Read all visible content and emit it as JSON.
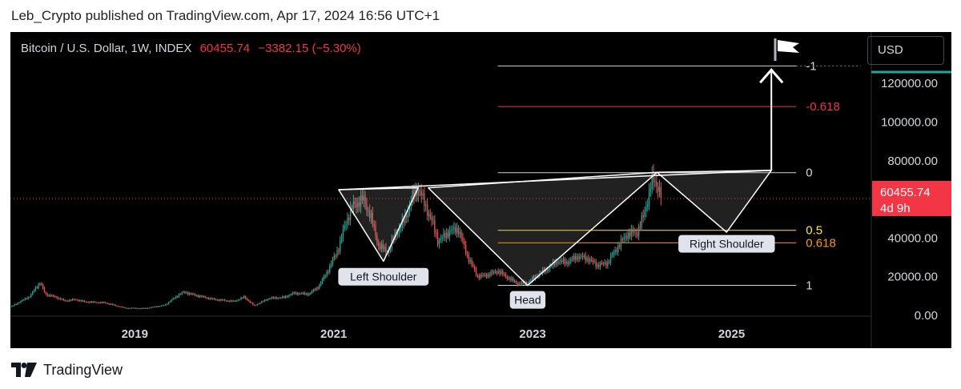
{
  "header": {
    "publisher": "Leb_Crypto published on TradingView.com, Apr 17, 2024 16:56 UTC+1"
  },
  "legend": {
    "symbol": "Bitcoin / U.S. Dollar, 1W, INDEX",
    "price": "60455.74",
    "change": "−3382.15 (−5.30%)"
  },
  "currency_button": "USD",
  "footer": {
    "brand": "TradingView",
    "logo_icon": "tradingview-logo-icon"
  },
  "colors": {
    "up": "#26a69a",
    "down": "#ef5350",
    "background": "#000000",
    "text": "#d1d4dc",
    "price_tag": "#f23645"
  },
  "chart_data": {
    "type": "candlestick",
    "y_axis": {
      "min": 0,
      "max": 130000,
      "ticks": [
        0,
        20000,
        40000,
        60000,
        80000,
        100000,
        120000
      ],
      "tick_labels": [
        "0.00",
        "20000.00",
        "40000.00",
        "",
        "80000.00",
        "100000.00",
        "120000.00"
      ]
    },
    "x_axis": {
      "min": 2017.75,
      "max": 2026.3,
      "ticks": [
        2019,
        2021,
        2023,
        2025
      ],
      "tick_labels": [
        "2019",
        "2021",
        "2023",
        "2025"
      ]
    },
    "price_series": [
      [
        2017.75,
        4300
      ],
      [
        2017.95,
        10000
      ],
      [
        2018.0,
        14000
      ],
      [
        2018.05,
        17000
      ],
      [
        2018.1,
        11000
      ],
      [
        2018.2,
        9500
      ],
      [
        2018.3,
        7500
      ],
      [
        2018.4,
        8200
      ],
      [
        2018.5,
        7000
      ],
      [
        2018.7,
        6500
      ],
      [
        2018.9,
        3800
      ],
      [
        2019.1,
        3600
      ],
      [
        2019.3,
        5200
      ],
      [
        2019.45,
        11000
      ],
      [
        2019.5,
        12000
      ],
      [
        2019.6,
        10500
      ],
      [
        2019.8,
        8200
      ],
      [
        2020.0,
        7200
      ],
      [
        2020.1,
        9500
      ],
      [
        2020.2,
        5000
      ],
      [
        2020.35,
        8800
      ],
      [
        2020.5,
        9300
      ],
      [
        2020.6,
        11500
      ],
      [
        2020.75,
        11000
      ],
      [
        2020.85,
        15000
      ],
      [
        2020.95,
        24000
      ],
      [
        2021.05,
        35000
      ],
      [
        2021.12,
        48000
      ],
      [
        2021.2,
        57000
      ],
      [
        2021.3,
        60000
      ],
      [
        2021.38,
        50000
      ],
      [
        2021.45,
        36000
      ],
      [
        2021.55,
        33000
      ],
      [
        2021.62,
        42000
      ],
      [
        2021.7,
        48000
      ],
      [
        2021.8,
        62000
      ],
      [
        2021.85,
        66000
      ],
      [
        2021.92,
        57000
      ],
      [
        2022.0,
        47000
      ],
      [
        2022.05,
        38000
      ],
      [
        2022.15,
        43000
      ],
      [
        2022.25,
        45000
      ],
      [
        2022.35,
        30000
      ],
      [
        2022.45,
        20000
      ],
      [
        2022.55,
        21000
      ],
      [
        2022.65,
        23000
      ],
      [
        2022.75,
        19500
      ],
      [
        2022.85,
        16500
      ],
      [
        2022.95,
        16800
      ],
      [
        2023.05,
        21000
      ],
      [
        2023.15,
        24000
      ],
      [
        2023.25,
        28000
      ],
      [
        2023.35,
        27500
      ],
      [
        2023.45,
        30500
      ],
      [
        2023.55,
        29500
      ],
      [
        2023.65,
        26000
      ],
      [
        2023.75,
        27000
      ],
      [
        2023.85,
        35000
      ],
      [
        2023.95,
        42000
      ],
      [
        2024.05,
        43000
      ],
      [
        2024.12,
        52000
      ],
      [
        2024.2,
        70000
      ],
      [
        2024.25,
        68000
      ],
      [
        2024.28,
        64000
      ],
      [
        2024.29,
        60455.74
      ]
    ],
    "current_price": {
      "value": 60455.74,
      "label": "60455.74",
      "countdown": "4d 9h"
    },
    "fib_levels": [
      {
        "label": "1",
        "value": 15500,
        "color": "#d1d4dc"
      },
      {
        "label": "0.618",
        "value": 37500,
        "color": "#ff9800"
      },
      {
        "label": "0.5",
        "value": 44000,
        "color": "#ffeb3b"
      },
      {
        "label": "0",
        "value": 73800,
        "color": "#d1d4dc"
      },
      {
        "label": "-0.618",
        "value": 108000,
        "color": "#f23645"
      },
      {
        "label": "-1",
        "value": 129000,
        "color": "#d1d4dc"
      }
    ],
    "pattern": {
      "neckline": [
        [
          2021.05,
          65000
        ],
        [
          2025.4,
          75000
        ]
      ],
      "left_shoulder": [
        [
          2021.05,
          65000
        ],
        [
          2021.5,
          28000
        ],
        [
          2021.85,
          66000
        ]
      ],
      "head": [
        [
          2021.95,
          66000
        ],
        [
          2022.95,
          15500
        ],
        [
          2024.25,
          74000
        ]
      ],
      "right_shoulder": [
        [
          2024.25,
          74000
        ],
        [
          2024.95,
          43000
        ],
        [
          2025.4,
          75000
        ]
      ],
      "arrow": [
        [
          2025.4,
          75000
        ],
        [
          2025.4,
          127000
        ]
      ],
      "labels": [
        {
          "text": "Left Shoulder",
          "x": 2021.5,
          "y": 20000
        },
        {
          "text": "Head",
          "x": 2022.95,
          "y": 8000
        },
        {
          "text": "Right Shoulder",
          "x": 2024.95,
          "y": 37000
        }
      ]
    }
  }
}
